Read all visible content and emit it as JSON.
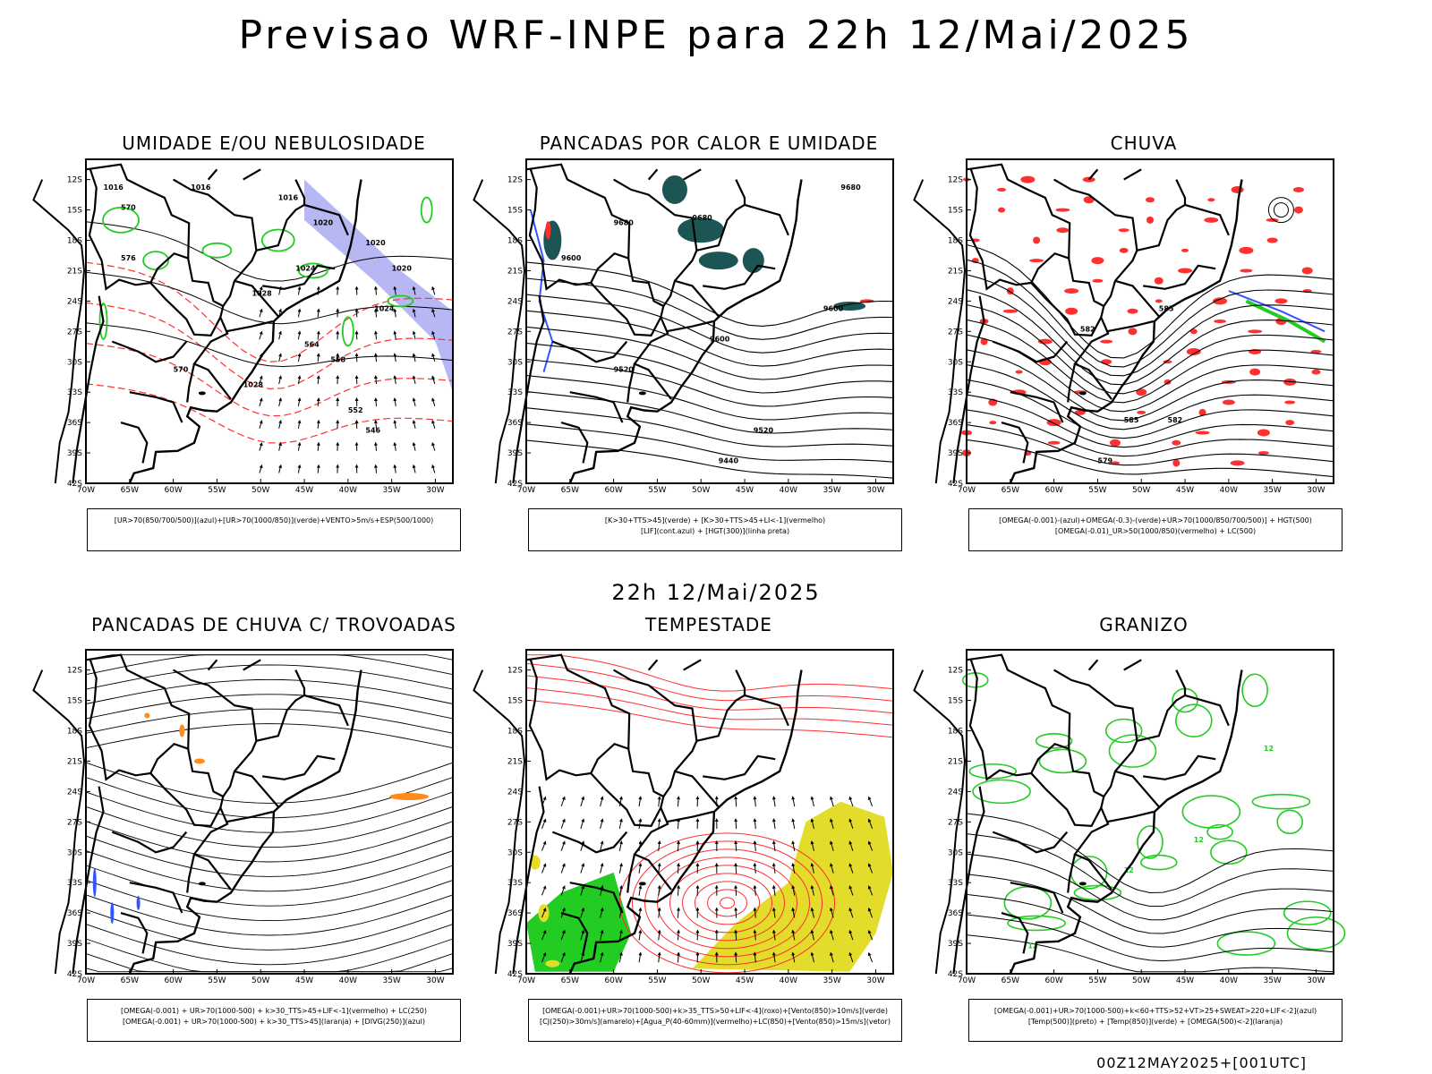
{
  "title": "Previsao WRF-INPE  para 22h 12/Mai/2025",
  "mid_title": "22h 12/Mai/2025",
  "footer": "00Z12MAY2025+[001UTC]",
  "axis": {
    "lat_ticks": [
      "12S",
      "15S",
      "18S",
      "21S",
      "24S",
      "27S",
      "30S",
      "33S",
      "36S",
      "39S",
      "42S"
    ],
    "lon_ticks": [
      "70W",
      "65W",
      "60W",
      "55W",
      "50W",
      "45W",
      "40W",
      "35W",
      "30W"
    ]
  },
  "panels": [
    {
      "title": "UMIDADE E/OU NEBULOSIDADE",
      "legend": [
        "[UR>70(850/700/500)](azul)+[UR>70(1000/850)](verde)+VENTO>5m/s+ESP(500/1000)"
      ],
      "labels": [
        "1016",
        "1016",
        "1016",
        "1020",
        "1020",
        "1024",
        "1028",
        "1028",
        "570",
        "570",
        "576",
        "564",
        "558",
        "552",
        "546",
        "1024",
        "1020"
      ]
    },
    {
      "title": "PANCADAS POR CALOR E UMIDADE",
      "legend": [
        "[K>30+TTS>45](verde) + [K>30+TTS>45+LI<-1](vermelho)",
        "[LIF](cont.azul) + [HGT(300)](linha preta)"
      ],
      "labels": [
        "9680",
        "9680",
        "9680",
        "9600",
        "9600",
        "9600",
        "9520",
        "9520",
        "9440"
      ]
    },
    {
      "title": "CHUVA",
      "legend": [
        "[OMEGA(-0.001)-(azul)+OMEGA(-0.3)-(verde)+UR>70(1000/850/700/500)] + HGT(500)",
        "[OMEGA(-0.01)_UR>50(1000/850)(vermelho) + LC(500)"
      ],
      "labels": [
        "585",
        "582",
        "579",
        "585",
        "582"
      ]
    },
    {
      "title": "PANCADAS DE CHUVA C/ TROVOADAS",
      "legend": [
        "[OMEGA(-0.001) + UR>70(1000-500) + k>30_TTS>45+LIF<-1](vermelho) + LC(250)",
        "[OMEGA(-0.001) + UR>70(1000-500) + k>30_TTS>45](laranja) + [DIVG(250)](azul)"
      ],
      "labels": []
    },
    {
      "title": "TEMPESTADE",
      "legend": [
        "[OMEGA(-0.001)+UR>70(1000-500)+k>35_TTS>50+LIF<-4](roxo)+[Vento(850)>10m/s](verde)",
        "[CJ(250)>30m/s](amarelo)+[Agua_P(40-60mm)](vermelho)+LC(850)+[Vento(850)>15m/s](vetor)"
      ],
      "labels": []
    },
    {
      "title": "GRANIZO",
      "legend": [
        "[OMEGA(-0.001)+UR>70(1000-500)+k<60+TTS>52+VT>25+SWEAT>220+LIF<-2](azul)",
        "[Temp(500)](preto) + [Temp(850)](verde) + [OMEGA(500)<-2](laranja)"
      ],
      "labels": [
        "12",
        "12",
        "12",
        "12"
      ]
    }
  ],
  "colors": {
    "black": "#000000",
    "red": "#ff3030",
    "green": "#22cc22",
    "blue": "#3355ff",
    "teal": "#1d5555",
    "lavender": "#9999ee",
    "yellow": "#e3dc2b",
    "orange": "#ff8c1a"
  },
  "chart_data": {
    "type": "other",
    "description_free": true,
    "panel_count": 6,
    "lat_range": [
      -42,
      -12
    ],
    "lon_range": [
      -70,
      -30
    ]
  }
}
